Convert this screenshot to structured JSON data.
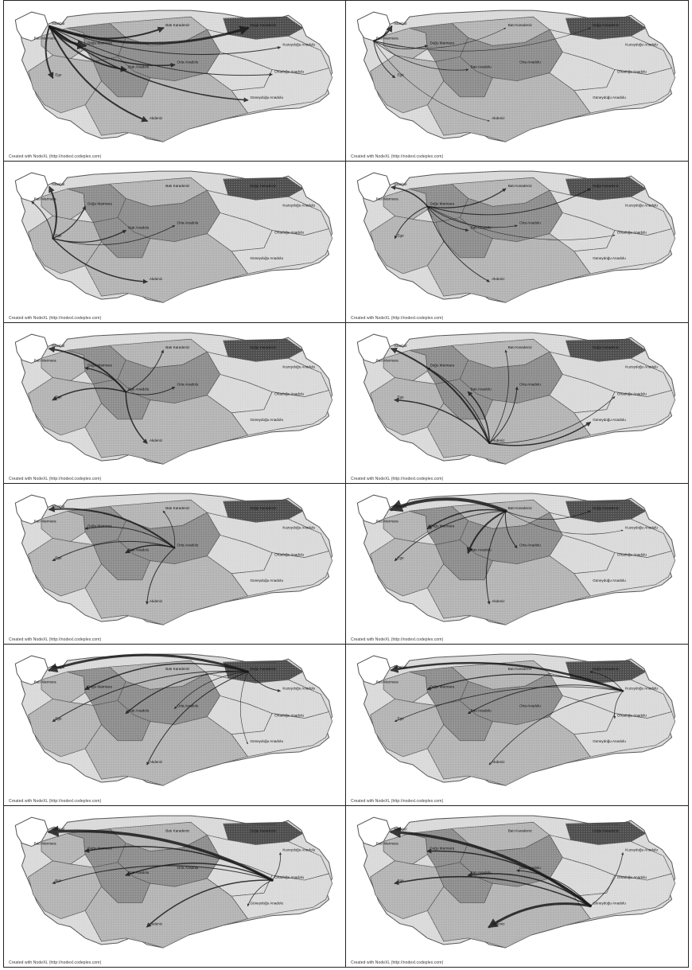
{
  "caption": "Created with NodeXL (http://nodexl.codeplex.com)",
  "colors": {
    "background": "#ffffff",
    "land_light": "#d9d9d9",
    "land_mid": "#b3b3b3",
    "land_dark": "#8c8c8c",
    "land_darkest": "#4d4d4d",
    "border": "#555555",
    "arrow": "#1a1a1a"
  },
  "region_labels": {
    "bati_marmara": "Batı Marmara",
    "istanbul": "İstanbul",
    "dogu_marmara": "Doğu Marmara",
    "ege": "Ege",
    "bati_anadolu": "Batı Anadolu",
    "akdeniz": "Akdeniz",
    "orta_anadolu": "Orta Anadolu",
    "bati_karadeniz": "Batı Karadeniz",
    "dogu_karadeniz": "Doğu Karadeniz",
    "kuzeydogu_anadolu": "Kuzeydoğu Anadolu",
    "ortadogu_anadolu": "Ortadoğu Anadolu",
    "guneydogu_anadolu": "Güneydoğu Anadolu"
  },
  "panels": [
    {
      "source": "istanbul",
      "flows": [
        {
          "to": "dogu_karadeniz",
          "w": 3
        },
        {
          "to": "bati_karadeniz",
          "w": 2
        },
        {
          "to": "dogu_marmara",
          "w": 3
        },
        {
          "to": "ege",
          "w": 2
        },
        {
          "to": "bati_anadolu",
          "w": 2
        },
        {
          "to": "akdeniz",
          "w": 2
        },
        {
          "to": "orta_anadolu",
          "w": 1.5
        },
        {
          "to": "guneydogu_anadolu",
          "w": 1.5
        },
        {
          "to": "kuzeydogu_anadolu",
          "w": 1
        },
        {
          "to": "ortadogu_anadolu",
          "w": 1
        }
      ]
    },
    {
      "source": "bati_marmara",
      "flows": [
        {
          "to": "istanbul",
          "w": 2
        },
        {
          "to": "dogu_marmara",
          "w": 1
        },
        {
          "to": "ege",
          "w": 1
        },
        {
          "to": "bati_anadolu",
          "w": 0.8
        },
        {
          "to": "akdeniz",
          "w": 0.6
        },
        {
          "to": "dogu_karadeniz",
          "w": 0.6
        },
        {
          "to": "bati_karadeniz",
          "w": 0.6
        }
      ]
    },
    {
      "source": "ege",
      "flows": [
        {
          "to": "istanbul",
          "w": 2
        },
        {
          "to": "bati_marmara",
          "w": 1
        },
        {
          "to": "dogu_marmara",
          "w": 1.2
        },
        {
          "to": "bati_anadolu",
          "w": 1.2
        },
        {
          "to": "akdeniz",
          "w": 1.5
        },
        {
          "to": "orta_anadolu",
          "w": 0.8
        }
      ]
    },
    {
      "source": "dogu_marmara",
      "flows": [
        {
          "to": "istanbul",
          "w": 1.5
        },
        {
          "to": "bati_karadeniz",
          "w": 1.2
        },
        {
          "to": "dogu_karadeniz",
          "w": 1
        },
        {
          "to": "ege",
          "w": 1
        },
        {
          "to": "bati_anadolu",
          "w": 1
        },
        {
          "to": "akdeniz",
          "w": 1
        },
        {
          "to": "orta_anadolu",
          "w": 0.8
        },
        {
          "to": "ortadogu_anadolu",
          "w": 0.6
        }
      ]
    },
    {
      "source": "bati_anadolu",
      "flows": [
        {
          "to": "istanbul",
          "w": 2
        },
        {
          "to": "ege",
          "w": 1.5
        },
        {
          "to": "dogu_marmara",
          "w": 1.2
        },
        {
          "to": "bati_karadeniz",
          "w": 1
        },
        {
          "to": "akdeniz",
          "w": 1.5
        },
        {
          "to": "orta_anadolu",
          "w": 1
        }
      ]
    },
    {
      "source": "akdeniz",
      "flows": [
        {
          "to": "istanbul",
          "w": 2
        },
        {
          "to": "ege",
          "w": 1.5
        },
        {
          "to": "bati_anadolu",
          "w": 1.5
        },
        {
          "to": "dogu_marmara",
          "w": 1
        },
        {
          "to": "orta_anadolu",
          "w": 1
        },
        {
          "to": "bati_karadeniz",
          "w": 0.8
        },
        {
          "to": "guneydogu_anadolu",
          "w": 1.5
        },
        {
          "to": "ortadogu_anadolu",
          "w": 0.8
        }
      ]
    },
    {
      "source": "orta_anadolu",
      "flows": [
        {
          "to": "istanbul",
          "w": 2
        },
        {
          "to": "bati_anadolu",
          "w": 1.5
        },
        {
          "to": "ege",
          "w": 1
        },
        {
          "to": "dogu_marmara",
          "w": 1
        },
        {
          "to": "akdeniz",
          "w": 1
        },
        {
          "to": "bati_karadeniz",
          "w": 0.8
        }
      ]
    },
    {
      "source": "bati_karadeniz",
      "flows": [
        {
          "to": "istanbul",
          "w": 4
        },
        {
          "to": "dogu_marmara",
          "w": 1.5
        },
        {
          "to": "bati_anadolu",
          "w": 2
        },
        {
          "to": "ege",
          "w": 1
        },
        {
          "to": "akdeniz",
          "w": 1
        },
        {
          "to": "orta_anadolu",
          "w": 1
        },
        {
          "to": "dogu_karadeniz",
          "w": 0.8
        },
        {
          "to": "kuzeydogu_anadolu",
          "w": 0.6
        }
      ]
    },
    {
      "source": "dogu_karadeniz",
      "flows": [
        {
          "to": "istanbul",
          "w": 3
        },
        {
          "to": "dogu_marmara",
          "w": 1.5
        },
        {
          "to": "bati_anadolu",
          "w": 1.2
        },
        {
          "to": "ege",
          "w": 1
        },
        {
          "to": "akdeniz",
          "w": 1
        },
        {
          "to": "kuzeydogu_anadolu",
          "w": 1
        },
        {
          "to": "orta_anadolu",
          "w": 0.8
        },
        {
          "to": "guneydogu_anadolu",
          "w": 0.6
        }
      ]
    },
    {
      "source": "kuzeydogu_anadolu",
      "flows": [
        {
          "to": "istanbul",
          "w": 2.5
        },
        {
          "to": "dogu_marmara",
          "w": 1.2
        },
        {
          "to": "bati_anadolu",
          "w": 1
        },
        {
          "to": "ege",
          "w": 0.8
        },
        {
          "to": "akdeniz",
          "w": 0.8
        },
        {
          "to": "dogu_karadeniz",
          "w": 0.8
        },
        {
          "to": "ortadogu_anadolu",
          "w": 0.8
        }
      ]
    },
    {
      "source": "ortadogu_anadolu",
      "flows": [
        {
          "to": "istanbul",
          "w": 3.5
        },
        {
          "to": "dogu_marmara",
          "w": 1.5
        },
        {
          "to": "bati_anadolu",
          "w": 1.5
        },
        {
          "to": "ege",
          "w": 1
        },
        {
          "to": "akdeniz",
          "w": 1.5
        },
        {
          "to": "kuzeydogu_anadolu",
          "w": 0.8
        },
        {
          "to": "guneydogu_anadolu",
          "w": 0.8
        }
      ]
    },
    {
      "source": "guneydogu_anadolu",
      "flows": [
        {
          "to": "istanbul",
          "w": 3.5
        },
        {
          "to": "ege",
          "w": 1.5
        },
        {
          "to": "akdeniz",
          "w": 3
        },
        {
          "to": "bati_anadolu",
          "w": 1.5
        },
        {
          "to": "dogu_marmara",
          "w": 1.5
        },
        {
          "to": "orta_anadolu",
          "w": 1
        },
        {
          "to": "kuzeydogu_anadolu",
          "w": 0.8
        }
      ]
    }
  ]
}
